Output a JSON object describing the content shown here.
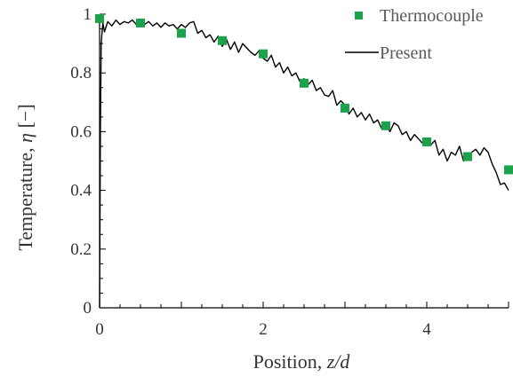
{
  "chart_data": {
    "type": "scatter",
    "xlabel_text": "Position, ",
    "xlabel_var": "z/d",
    "ylabel_text": "Temperature, ",
    "ylabel_var": "η",
    "ylabel_unit": " [−]",
    "xlim": [
      0,
      5
    ],
    "ylim": [
      0,
      1
    ],
    "x_ticks": [
      "0",
      "2",
      "4"
    ],
    "x_tick_values": [
      0,
      2,
      4
    ],
    "y_ticks": [
      "0",
      "0.2",
      "0.4",
      "0.6",
      "0.8",
      "1"
    ],
    "y_tick_values": [
      0,
      0.2,
      0.4,
      0.6,
      0.8,
      1
    ],
    "grid": false,
    "legend_position": "top-right",
    "series": [
      {
        "name": "Thermocouple",
        "kind": "markers",
        "color": "#1aa34a",
        "x": [
          0.0,
          0.5,
          1.0,
          1.5,
          2.0,
          2.5,
          3.0,
          3.5,
          4.0,
          4.5,
          5.0
        ],
        "y": [
          0.985,
          0.97,
          0.935,
          0.91,
          0.865,
          0.765,
          0.68,
          0.62,
          0.565,
          0.515,
          0.47
        ]
      },
      {
        "name": "Present",
        "kind": "line",
        "color": "#000000",
        "x": [
          0.0,
          0.01,
          0.02,
          0.04,
          0.06,
          0.1,
          0.15,
          0.2,
          0.25,
          0.3,
          0.35,
          0.4,
          0.45,
          0.5,
          0.55,
          0.6,
          0.65,
          0.7,
          0.75,
          0.8,
          0.85,
          0.9,
          0.95,
          1.0,
          1.05,
          1.1,
          1.15,
          1.2,
          1.25,
          1.3,
          1.35,
          1.4,
          1.45,
          1.5,
          1.55,
          1.6,
          1.65,
          1.7,
          1.75,
          1.8,
          1.85,
          1.9,
          1.95,
          2.0,
          2.05,
          2.1,
          2.15,
          2.2,
          2.25,
          2.3,
          2.35,
          2.4,
          2.45,
          2.5,
          2.55,
          2.6,
          2.65,
          2.7,
          2.75,
          2.8,
          2.85,
          2.9,
          2.95,
          3.0,
          3.05,
          3.1,
          3.15,
          3.2,
          3.25,
          3.3,
          3.35,
          3.4,
          3.45,
          3.5,
          3.55,
          3.6,
          3.65,
          3.7,
          3.75,
          3.8,
          3.85,
          3.9,
          3.95,
          4.0,
          4.05,
          4.1,
          4.15,
          4.2,
          4.25,
          4.3,
          4.35,
          4.4,
          4.45,
          4.5,
          4.55,
          4.6,
          4.65,
          4.7,
          4.75,
          4.8,
          4.85,
          4.9,
          4.95,
          5.0
        ],
        "y": [
          0.0,
          0.6,
          0.9,
          0.97,
          0.94,
          0.975,
          0.96,
          0.98,
          0.965,
          0.975,
          0.97,
          0.98,
          0.965,
          0.975,
          0.965,
          0.975,
          0.96,
          0.97,
          0.955,
          0.97,
          0.96,
          0.965,
          0.95,
          0.965,
          0.955,
          0.97,
          0.975,
          0.935,
          0.945,
          0.92,
          0.93,
          0.905,
          0.925,
          0.89,
          0.915,
          0.88,
          0.905,
          0.87,
          0.9,
          0.885,
          0.87,
          0.86,
          0.875,
          0.85,
          0.84,
          0.86,
          0.82,
          0.835,
          0.8,
          0.82,
          0.79,
          0.8,
          0.77,
          0.78,
          0.76,
          0.775,
          0.74,
          0.75,
          0.725,
          0.72,
          0.74,
          0.69,
          0.705,
          0.69,
          0.66,
          0.68,
          0.65,
          0.665,
          0.64,
          0.66,
          0.63,
          0.64,
          0.61,
          0.625,
          0.6,
          0.63,
          0.62,
          0.59,
          0.6,
          0.57,
          0.59,
          0.575,
          0.56,
          0.57,
          0.555,
          0.57,
          0.52,
          0.54,
          0.5,
          0.53,
          0.52,
          0.55,
          0.5,
          0.51,
          0.53,
          0.54,
          0.52,
          0.545,
          0.53,
          0.49,
          0.46,
          0.42,
          0.425,
          0.4
        ]
      }
    ]
  }
}
